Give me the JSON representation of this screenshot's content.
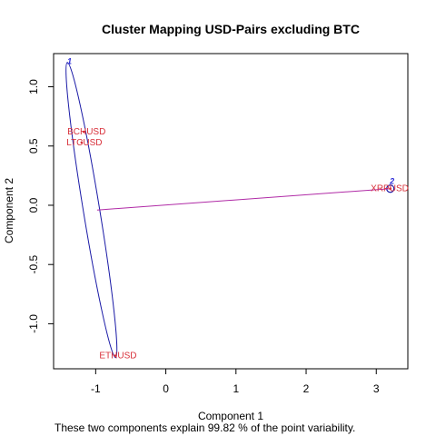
{
  "chart_data": {
    "type": "scatter",
    "title": "Cluster Mapping USD-Pairs excluding BTC",
    "xlabel": "Component 1",
    "ylabel": "Component 2",
    "caption": "These two components explain 99.82 % of the point variability.",
    "xlim": [
      -1.6,
      3.45
    ],
    "ylim": [
      -1.38,
      1.28
    ],
    "xticks": [
      -1,
      0,
      1,
      2,
      3
    ],
    "yticks": [
      -1.0,
      -0.5,
      0.0,
      0.5,
      1.0
    ],
    "xtick_labels": [
      "-1",
      "0",
      "1",
      "2",
      "3"
    ],
    "ytick_labels": [
      "-1.0",
      "-0.5",
      "0.0",
      "0.5",
      "1.0"
    ],
    "points": [
      {
        "label": "BCHUSD",
        "x": -1.17,
        "y": 0.62,
        "cluster": 1
      },
      {
        "label": "LTCUSD",
        "x": -1.2,
        "y": 0.53,
        "cluster": 1
      },
      {
        "label": "ETHUSD",
        "x": -0.72,
        "y": -1.27,
        "cluster": 1
      },
      {
        "label": "XRPUSD",
        "x": 3.2,
        "y": 0.14,
        "cluster": 2
      }
    ],
    "clusters": [
      {
        "name": "1",
        "center": [
          -1.4,
          1.19
        ]
      },
      {
        "name": "2",
        "center": [
          3.2,
          0.18
        ]
      }
    ],
    "connector": {
      "from": [
        -0.98,
        -0.04
      ],
      "to": [
        3.2,
        0.14
      ]
    },
    "colors": {
      "cluster_outline": "#1a1aa6",
      "connector": "#b02aa6",
      "point_label": "#d8303a",
      "cluster_label": "#2b2bd6"
    },
    "grid": false
  }
}
